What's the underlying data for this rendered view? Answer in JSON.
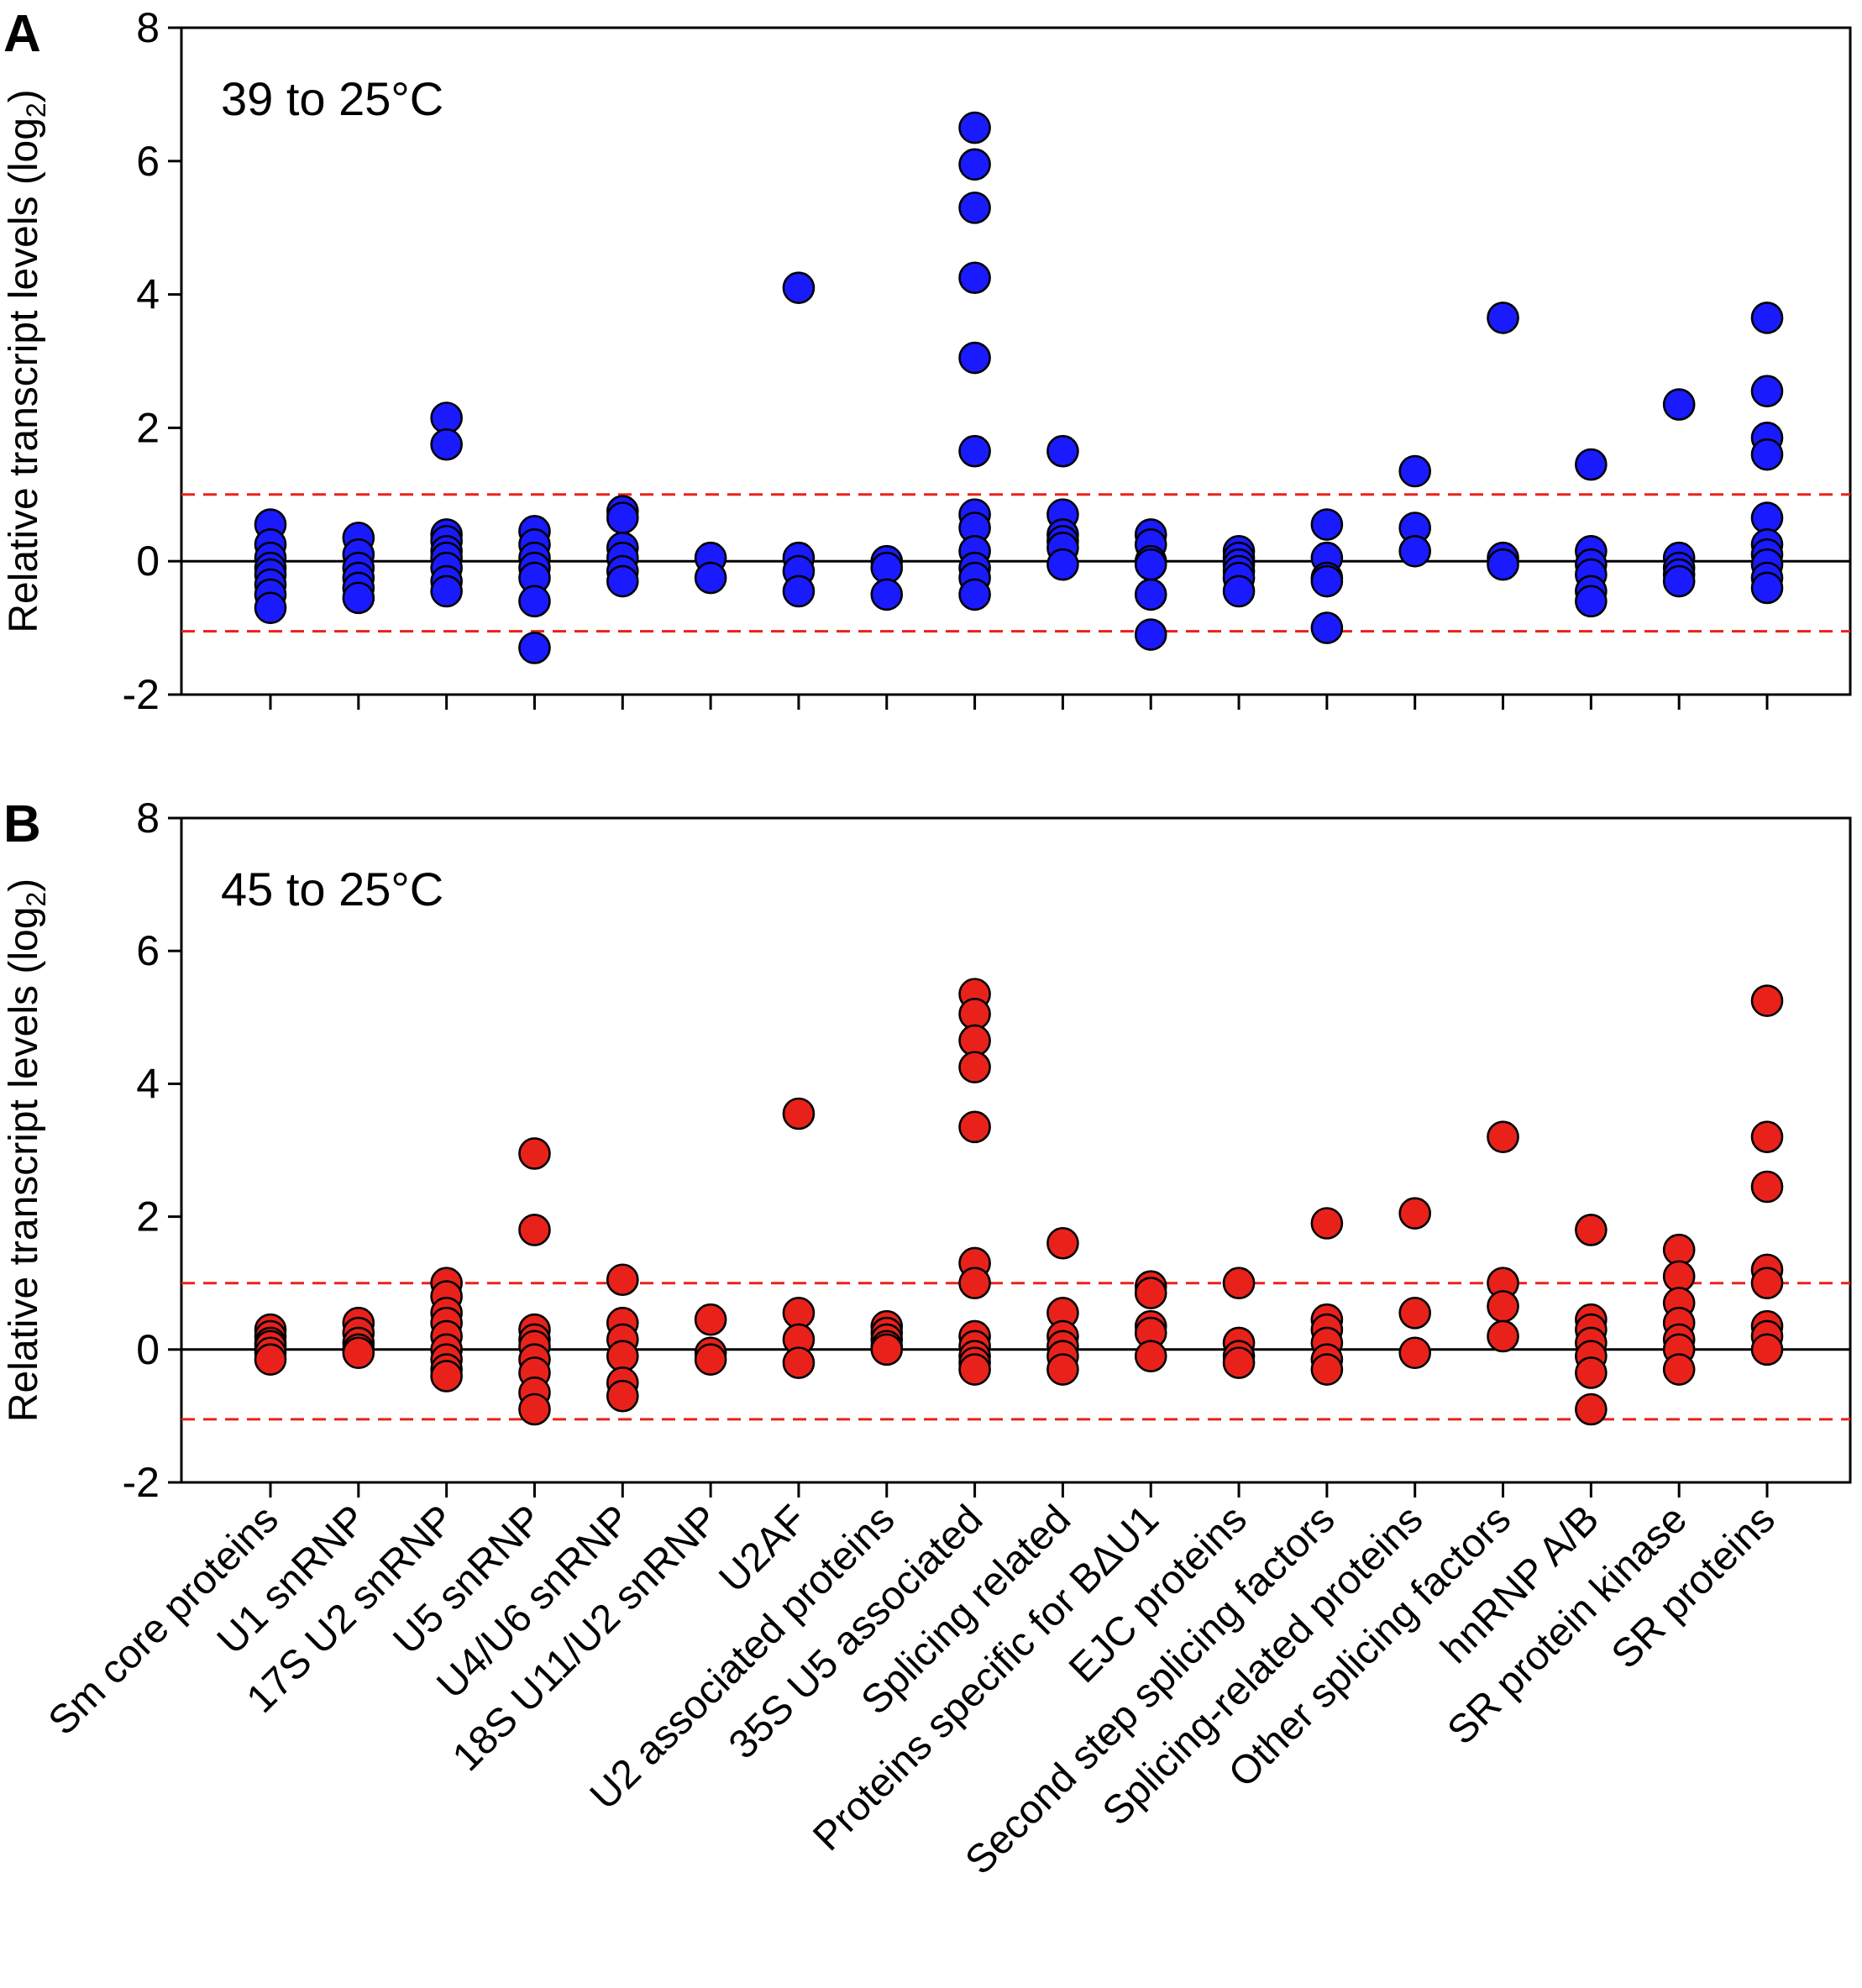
{
  "chart_data": {
    "type": "scatter",
    "ylabel": "Relative transcript levels (log",
    "ylabel_sub": "2",
    "ylabel_end": ")",
    "ylim": [
      -2,
      8
    ],
    "yticks": [
      -2,
      0,
      2,
      4,
      6,
      8
    ],
    "reference_lines": [
      1,
      -1.05
    ],
    "categories": [
      "Sm core proteins",
      "U1 snRNP",
      "17S U2 snRNP",
      "U5 snRNP",
      "U4/U6 snRNP",
      "18S U11/U2 snRNP",
      "U2AF",
      "U2 associated proteins",
      "35S U5 associated",
      "Splicing related",
      "Proteins specific for BΔU1",
      "EJC proteins",
      "Second step splicing factors",
      "Splicing-related proteins",
      "Other splicing factors",
      "hnRNP A/B",
      "SR protein kinase",
      "SR proteins"
    ],
    "panels": [
      {
        "letter": "A",
        "condition": "39 to 25°C",
        "color": "#1a1aff",
        "values": [
          [
            0.55,
            0.25,
            0.05,
            -0.1,
            -0.2,
            -0.35,
            -0.5,
            -0.7
          ],
          [
            0.35,
            0.1,
            -0.1,
            -0.25,
            -0.4,
            -0.55
          ],
          [
            2.15,
            1.75,
            0.4,
            0.3,
            0.15,
            0.05,
            -0.1,
            -0.3,
            -0.45
          ],
          [
            0.45,
            0.25,
            0.05,
            -0.1,
            -0.25,
            -0.6,
            -1.3
          ],
          [
            0.75,
            0.65,
            0.2,
            0.05,
            -0.15,
            -0.3
          ],
          [
            0.05,
            -0.25
          ],
          [
            4.1,
            0.05,
            -0.15,
            -0.45
          ],
          [
            0.0,
            -0.1,
            -0.5
          ],
          [
            6.5,
            5.95,
            5.3,
            4.25,
            3.05,
            1.65,
            0.7,
            0.5,
            0.15,
            -0.1,
            -0.25,
            -0.5
          ],
          [
            1.65,
            0.7,
            0.4,
            0.3,
            0.2,
            -0.05
          ],
          [
            0.4,
            0.25,
            0.0,
            -0.05,
            -0.5,
            -1.1
          ],
          [
            0.15,
            0.05,
            -0.05,
            -0.15,
            -0.25,
            -0.45
          ],
          [
            0.55,
            0.05,
            -0.25,
            -0.3,
            -1.0
          ],
          [
            1.35,
            0.5,
            0.15
          ],
          [
            3.65,
            0.05,
            -0.05
          ],
          [
            1.45,
            0.15,
            -0.05,
            -0.2,
            -0.45,
            -0.6
          ],
          [
            2.35,
            0.05,
            -0.1,
            -0.2,
            -0.3
          ],
          [
            3.65,
            2.55,
            1.85,
            1.6,
            0.65,
            0.25,
            0.1,
            -0.05,
            -0.25,
            -0.4
          ]
        ]
      },
      {
        "letter": "B",
        "condition": "45 to 25°C",
        "color": "#e8221b",
        "values": [
          [
            0.3,
            0.2,
            0.1,
            0.05,
            -0.05,
            -0.15
          ],
          [
            0.4,
            0.25,
            0.1,
            0.0,
            -0.05
          ],
          [
            1.0,
            0.8,
            0.55,
            0.4,
            0.2,
            0.0,
            -0.15,
            -0.3,
            -0.4
          ],
          [
            2.95,
            1.8,
            0.3,
            0.15,
            0.05,
            -0.15,
            -0.35,
            -0.65,
            -0.9
          ],
          [
            1.05,
            0.4,
            0.15,
            -0.1,
            -0.5,
            -0.7
          ],
          [
            0.45,
            -0.05,
            -0.15
          ],
          [
            3.55,
            0.55,
            0.15,
            -0.2
          ],
          [
            0.35,
            0.25,
            0.15,
            0.05,
            0.0
          ],
          [
            5.35,
            5.05,
            4.65,
            4.25,
            3.35,
            1.3,
            1.0,
            0.2,
            0.05,
            -0.1,
            -0.2,
            -0.3
          ],
          [
            1.6,
            0.55,
            0.2,
            0.05,
            -0.1,
            -0.3
          ],
          [
            0.95,
            0.85,
            0.35,
            0.25,
            -0.1
          ],
          [
            1.0,
            0.1,
            -0.1,
            -0.2
          ],
          [
            1.9,
            0.45,
            0.3,
            0.1,
            -0.15,
            -0.3
          ],
          [
            2.05,
            0.55,
            -0.05
          ],
          [
            3.2,
            1.0,
            0.65,
            0.2
          ],
          [
            1.8,
            0.45,
            0.3,
            0.1,
            -0.1,
            -0.35,
            -0.9
          ],
          [
            1.5,
            1.1,
            0.7,
            0.4,
            0.15,
            0.0,
            -0.3
          ],
          [
            5.25,
            3.2,
            2.45,
            1.2,
            1.0,
            0.35,
            0.2,
            0.0
          ]
        ]
      }
    ]
  }
}
